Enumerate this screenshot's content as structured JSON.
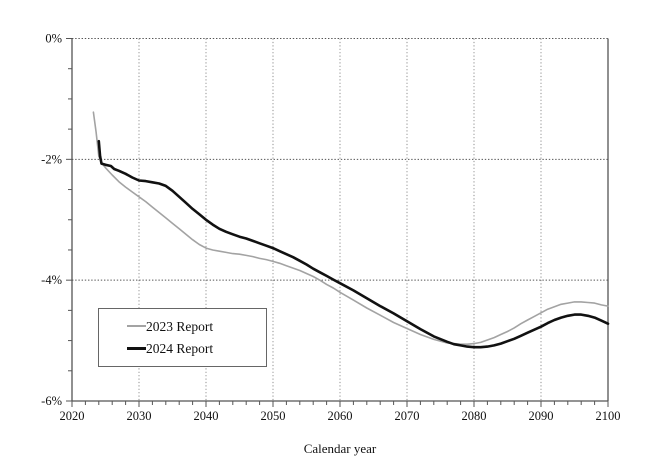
{
  "axis_title_x": "Calendar year",
  "legend": {
    "items": [
      {
        "label": "2023 Report",
        "color": "#a3a3a3",
        "thickness": 2
      },
      {
        "label": "2024 Report",
        "color": "#111111",
        "thickness": 3
      }
    ]
  },
  "chart_data": {
    "type": "line",
    "title": "",
    "xlabel": "Calendar year",
    "ylabel": "",
    "xlim": [
      2020,
      2100
    ],
    "ylim": [
      -6,
      0
    ],
    "x_major_ticks": [
      2020,
      2030,
      2040,
      2050,
      2060,
      2070,
      2080,
      2090,
      2100
    ],
    "x_tick_labels": [
      "2020",
      "2030",
      "2040",
      "2050",
      "2060",
      "2070",
      "2080",
      "2090",
      "2100"
    ],
    "x_minor_step": 2,
    "y_major_ticks": [
      0,
      -2,
      -4,
      -6
    ],
    "y_tick_labels": [
      "0%",
      "-2%",
      "-4%",
      "-6%"
    ],
    "y_minor_step": 0.5,
    "grid": {
      "vertical_at": [
        2030,
        2040,
        2050,
        2060,
        2070,
        2080,
        2090
      ],
      "horizontal_at": [
        0,
        -2,
        -4
      ],
      "style": "dotted"
    },
    "legend_position": "lower-left",
    "series": [
      {
        "name": "2023 Report",
        "color": "#a3a3a3",
        "stroke_width": 1.6,
        "points": [
          [
            2023.2,
            -1.22
          ],
          [
            2023.6,
            -1.55
          ],
          [
            2024,
            -1.95
          ],
          [
            2024.5,
            -2.07
          ],
          [
            2025,
            -2.14
          ],
          [
            2026,
            -2.26
          ],
          [
            2027,
            -2.37
          ],
          [
            2028,
            -2.46
          ],
          [
            2029,
            -2.54
          ],
          [
            2030,
            -2.62
          ],
          [
            2031,
            -2.7
          ],
          [
            2032,
            -2.79
          ],
          [
            2033,
            -2.88
          ],
          [
            2034,
            -2.97
          ],
          [
            2035,
            -3.06
          ],
          [
            2036,
            -3.15
          ],
          [
            2037,
            -3.24
          ],
          [
            2038,
            -3.33
          ],
          [
            2039,
            -3.41
          ],
          [
            2040,
            -3.47
          ],
          [
            2041,
            -3.5
          ],
          [
            2042,
            -3.52
          ],
          [
            2043,
            -3.54
          ],
          [
            2044,
            -3.56
          ],
          [
            2045,
            -3.57
          ],
          [
            2046,
            -3.59
          ],
          [
            2047,
            -3.61
          ],
          [
            2048,
            -3.64
          ],
          [
            2049,
            -3.66
          ],
          [
            2050,
            -3.69
          ],
          [
            2051,
            -3.72
          ],
          [
            2052,
            -3.76
          ],
          [
            2053,
            -3.8
          ],
          [
            2054,
            -3.84
          ],
          [
            2055,
            -3.89
          ],
          [
            2056,
            -3.94
          ],
          [
            2057,
            -4.0
          ],
          [
            2058,
            -4.07
          ],
          [
            2059,
            -4.13
          ],
          [
            2060,
            -4.2
          ],
          [
            2062,
            -4.33
          ],
          [
            2064,
            -4.46
          ],
          [
            2066,
            -4.58
          ],
          [
            2068,
            -4.7
          ],
          [
            2070,
            -4.8
          ],
          [
            2072,
            -4.9
          ],
          [
            2074,
            -4.98
          ],
          [
            2076,
            -5.04
          ],
          [
            2077,
            -5.05
          ],
          [
            2078,
            -5.06
          ],
          [
            2079,
            -5.06
          ],
          [
            2080,
            -5.05
          ],
          [
            2081,
            -5.03
          ],
          [
            2082,
            -4.99
          ],
          [
            2083,
            -4.95
          ],
          [
            2084,
            -4.9
          ],
          [
            2085,
            -4.85
          ],
          [
            2086,
            -4.79
          ],
          [
            2087,
            -4.72
          ],
          [
            2088,
            -4.66
          ],
          [
            2089,
            -4.6
          ],
          [
            2090,
            -4.54
          ],
          [
            2091,
            -4.48
          ],
          [
            2092,
            -4.44
          ],
          [
            2093,
            -4.4
          ],
          [
            2094,
            -4.38
          ],
          [
            2095,
            -4.36
          ],
          [
            2096,
            -4.36
          ],
          [
            2097,
            -4.37
          ],
          [
            2098,
            -4.38
          ],
          [
            2099,
            -4.41
          ],
          [
            2100,
            -4.43
          ]
        ]
      },
      {
        "name": "2024 Report",
        "color": "#111111",
        "stroke_width": 2.6,
        "points": [
          [
            2024,
            -1.7
          ],
          [
            2024.2,
            -1.95
          ],
          [
            2024.4,
            -2.07
          ],
          [
            2025,
            -2.09
          ],
          [
            2025.8,
            -2.11
          ],
          [
            2026.3,
            -2.16
          ],
          [
            2027,
            -2.19
          ],
          [
            2028,
            -2.24
          ],
          [
            2029,
            -2.3
          ],
          [
            2030,
            -2.35
          ],
          [
            2031,
            -2.36
          ],
          [
            2032,
            -2.38
          ],
          [
            2033,
            -2.4
          ],
          [
            2034,
            -2.44
          ],
          [
            2035,
            -2.52
          ],
          [
            2036,
            -2.62
          ],
          [
            2037,
            -2.72
          ],
          [
            2038,
            -2.82
          ],
          [
            2039,
            -2.91
          ],
          [
            2040,
            -3.0
          ],
          [
            2041,
            -3.08
          ],
          [
            2042,
            -3.15
          ],
          [
            2043,
            -3.2
          ],
          [
            2044,
            -3.24
          ],
          [
            2045,
            -3.28
          ],
          [
            2046,
            -3.31
          ],
          [
            2047,
            -3.35
          ],
          [
            2048,
            -3.39
          ],
          [
            2049,
            -3.43
          ],
          [
            2050,
            -3.47
          ],
          [
            2051,
            -3.52
          ],
          [
            2052,
            -3.57
          ],
          [
            2053,
            -3.62
          ],
          [
            2054,
            -3.68
          ],
          [
            2055,
            -3.74
          ],
          [
            2056,
            -3.81
          ],
          [
            2057,
            -3.87
          ],
          [
            2058,
            -3.93
          ],
          [
            2059,
            -3.99
          ],
          [
            2060,
            -4.05
          ],
          [
            2062,
            -4.17
          ],
          [
            2064,
            -4.3
          ],
          [
            2066,
            -4.43
          ],
          [
            2068,
            -4.55
          ],
          [
            2070,
            -4.68
          ],
          [
            2072,
            -4.81
          ],
          [
            2074,
            -4.93
          ],
          [
            2076,
            -5.02
          ],
          [
            2077,
            -5.06
          ],
          [
            2078,
            -5.08
          ],
          [
            2079,
            -5.1
          ],
          [
            2080,
            -5.11
          ],
          [
            2081,
            -5.11
          ],
          [
            2082,
            -5.1
          ],
          [
            2083,
            -5.08
          ],
          [
            2084,
            -5.05
          ],
          [
            2085,
            -5.01
          ],
          [
            2086,
            -4.97
          ],
          [
            2087,
            -4.92
          ],
          [
            2088,
            -4.87
          ],
          [
            2089,
            -4.82
          ],
          [
            2090,
            -4.77
          ],
          [
            2091,
            -4.71
          ],
          [
            2092,
            -4.66
          ],
          [
            2093,
            -4.62
          ],
          [
            2094,
            -4.59
          ],
          [
            2095,
            -4.57
          ],
          [
            2096,
            -4.57
          ],
          [
            2097,
            -4.59
          ],
          [
            2098,
            -4.62
          ],
          [
            2099,
            -4.67
          ],
          [
            2100,
            -4.72
          ]
        ]
      }
    ],
    "colors": {
      "frame": "#555555",
      "grid_vertical": "#8f8f8f",
      "grid_horizontal": "#555555",
      "tick": "#555555",
      "text": "#111111",
      "background": "#ffffff"
    }
  }
}
